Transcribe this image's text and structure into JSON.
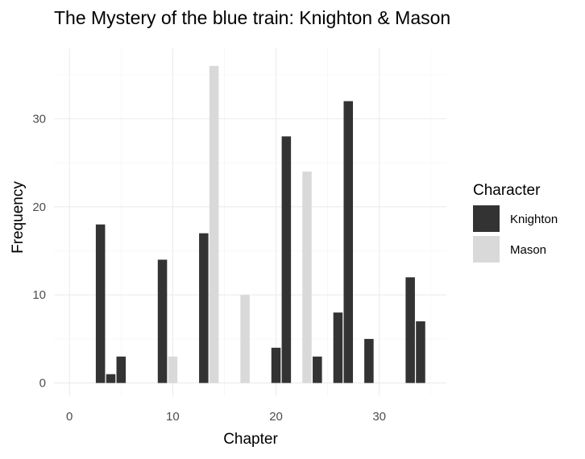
{
  "chart_data": {
    "type": "bar",
    "title": "The Mystery of the blue train: Knighton & Mason",
    "xlabel": "Chapter",
    "ylabel": "Frequency",
    "xlim": [
      -1.5,
      36.5
    ],
    "ylim": [
      -1.5,
      38
    ],
    "x_ticks": [
      0,
      10,
      20,
      30
    ],
    "y_ticks": [
      0,
      10,
      20,
      30
    ],
    "grid": true,
    "legend_position": "right",
    "legend_title": "Character",
    "series": [
      {
        "name": "Knighton",
        "color": "#333333",
        "points": [
          {
            "chapter": 3,
            "value": 18
          },
          {
            "chapter": 4,
            "value": 1
          },
          {
            "chapter": 5,
            "value": 3
          },
          {
            "chapter": 9,
            "value": 14
          },
          {
            "chapter": 13,
            "value": 17
          },
          {
            "chapter": 20,
            "value": 4
          },
          {
            "chapter": 21,
            "value": 28
          },
          {
            "chapter": 24,
            "value": 3
          },
          {
            "chapter": 26,
            "value": 8
          },
          {
            "chapter": 27,
            "value": 32
          },
          {
            "chapter": 29,
            "value": 5
          },
          {
            "chapter": 33,
            "value": 12
          },
          {
            "chapter": 34,
            "value": 7
          }
        ]
      },
      {
        "name": "Mason",
        "color": "#d9d9d9",
        "points": [
          {
            "chapter": 10,
            "value": 3
          },
          {
            "chapter": 14,
            "value": 36
          },
          {
            "chapter": 17,
            "value": 10
          },
          {
            "chapter": 23,
            "value": 24
          }
        ]
      }
    ]
  }
}
